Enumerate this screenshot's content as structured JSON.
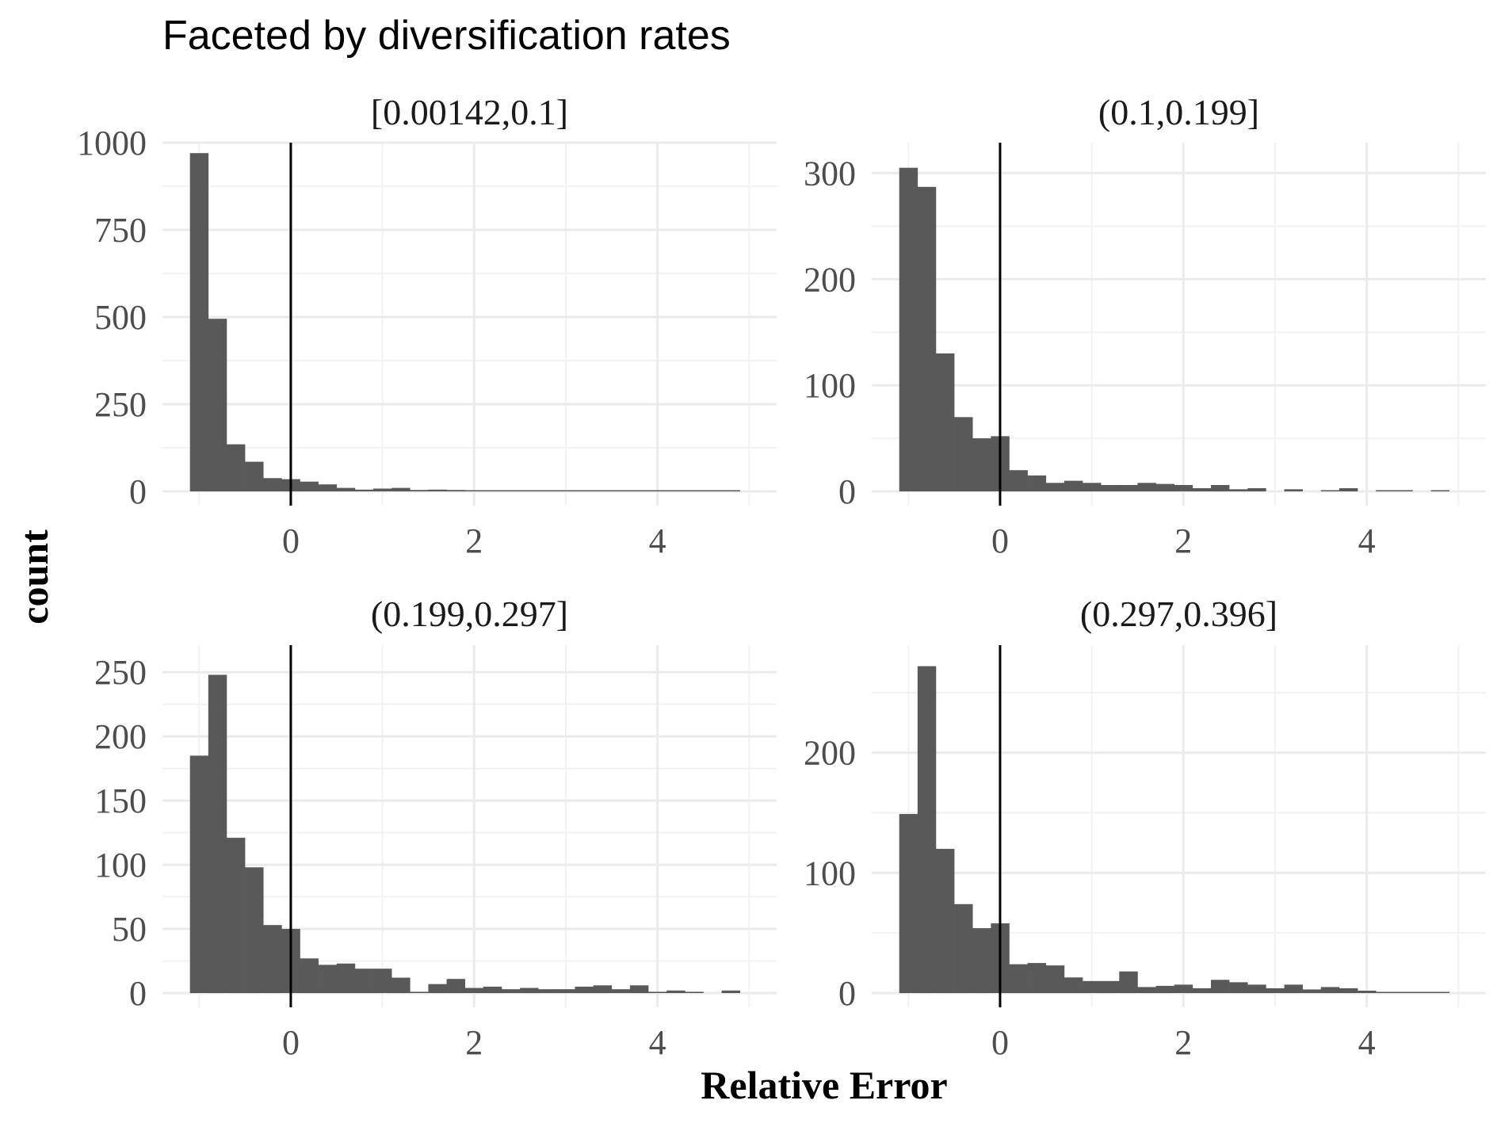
{
  "chart_data": {
    "type": "bar",
    "title": "Faceted by diversification rates",
    "xlabel": "Relative Error",
    "ylabel": "count",
    "x_ticks": [
      0,
      2,
      4
    ],
    "xlim": [
      -1.4,
      5.3
    ],
    "bin_start": -1.1,
    "bin_width": 0.2,
    "reference_line_x": 0,
    "grid": true,
    "bar_color": "#595959",
    "facets": [
      {
        "label": "[0.00142,0.1]",
        "ylim": [
          0,
          1000
        ],
        "y_ticks": [
          0,
          250,
          500,
          750,
          1000
        ],
        "values": [
          970,
          495,
          135,
          85,
          38,
          35,
          28,
          20,
          10,
          5,
          8,
          10,
          4,
          5,
          4,
          2,
          2,
          2,
          2,
          1,
          2,
          1,
          1,
          1,
          1,
          2,
          1,
          1,
          1,
          2
        ]
      },
      {
        "label": "(0.1,0.199]",
        "ylim": [
          0,
          310
        ],
        "y_ticks": [
          0,
          100,
          200,
          300
        ],
        "values": [
          305,
          287,
          130,
          70,
          50,
          52,
          20,
          15,
          8,
          10,
          8,
          6,
          6,
          8,
          7,
          6,
          3,
          6,
          2,
          3,
          0,
          2,
          0,
          1,
          3,
          0,
          1,
          1,
          0,
          1
        ]
      },
      {
        "label": "(0.199,0.297]",
        "ylim": [
          0,
          260
        ],
        "y_ticks": [
          0,
          50,
          100,
          150,
          200,
          250
        ],
        "values": [
          185,
          248,
          121,
          98,
          53,
          50,
          27,
          22,
          23,
          19,
          19,
          12,
          1,
          7,
          11,
          4,
          5,
          3,
          4,
          3,
          3,
          5,
          6,
          3,
          6,
          1,
          2,
          1,
          0,
          2
        ]
      },
      {
        "label": "(0.297,0.396]",
        "ylim": [
          0,
          275
        ],
        "y_ticks": [
          0,
          100,
          200
        ],
        "values": [
          149,
          272,
          120,
          74,
          54,
          58,
          24,
          25,
          23,
          13,
          10,
          10,
          18,
          5,
          6,
          7,
          4,
          11,
          9,
          7,
          4,
          7,
          3,
          5,
          4,
          2,
          1,
          1,
          1,
          1
        ]
      }
    ]
  }
}
